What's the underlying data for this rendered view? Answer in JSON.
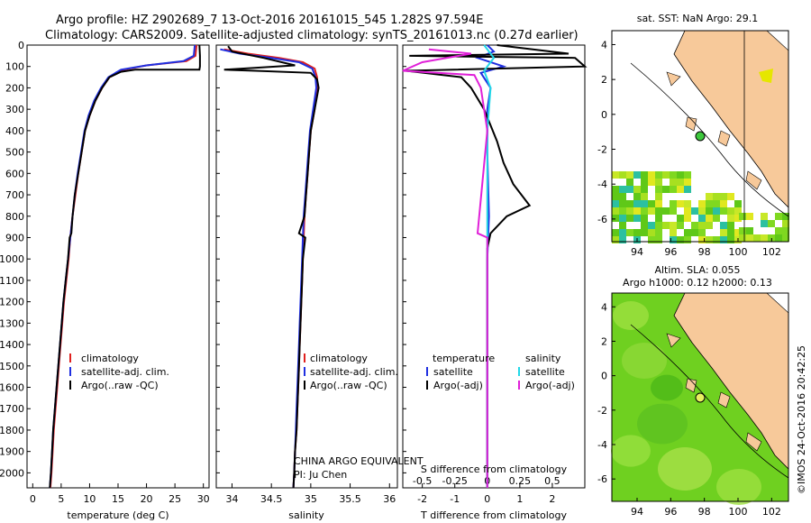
{
  "header": {
    "line1": "Argo profile: HZ 2902689_7 13-Oct-2016 20161015_545 1.282S 97.594E",
    "line2": "Climatology: CARS2009. Satellite-adjusted climatology: synTS_20161013.nc (0.27d earlier)"
  },
  "colors": {
    "climatology": "#e0201e",
    "satellite": "#1f2fe0",
    "argo": "#000000",
    "salinity_sat": "#22d8e8",
    "salinity_argo": "#e020d8",
    "land": "#f7c99a",
    "ocean_sst": "#6fd020"
  },
  "chart_data": [
    {
      "type": "line",
      "name": "temperature-panel",
      "xlabel": "temperature (deg C)",
      "ylabel": "",
      "xlim": [
        -1,
        31
      ],
      "ylim": [
        2070,
        0
      ],
      "xticks": [
        "0",
        "5",
        "10",
        "15",
        "20",
        "25",
        "30"
      ],
      "yticks": [
        "0",
        "100",
        "200",
        "300",
        "400",
        "500",
        "600",
        "700",
        "800",
        "900",
        "1000",
        "1100",
        "1200",
        "1300",
        "1400",
        "1500",
        "1600",
        "1700",
        "1800",
        "1900",
        "2000"
      ],
      "legend": [
        "climatology",
        "satellite-adj. clim.",
        "Argo(..raw -QC)"
      ],
      "series": [
        {
          "name": "climatology",
          "color": "#e0201e",
          "points": [
            [
              28.8,
              0
            ],
            [
              28.6,
              50
            ],
            [
              27,
              75
            ],
            [
              20,
              95
            ],
            [
              16,
              115
            ],
            [
              13.5,
              150
            ],
            [
              12.2,
              200
            ],
            [
              11,
              260
            ],
            [
              10,
              330
            ],
            [
              9.2,
              400
            ],
            [
              8.6,
              500
            ],
            [
              8,
              600
            ],
            [
              7.5,
              700
            ],
            [
              7,
              800
            ],
            [
              6.6,
              900
            ],
            [
              6.3,
              1000
            ],
            [
              5.9,
              1100
            ],
            [
              5.5,
              1200
            ],
            [
              5.2,
              1300
            ],
            [
              4.9,
              1400
            ],
            [
              4.6,
              1500
            ],
            [
              4.3,
              1600
            ],
            [
              4,
              1700
            ],
            [
              3.7,
              1800
            ],
            [
              3.5,
              1900
            ],
            [
              3.3,
              2000
            ],
            [
              3.1,
              2070
            ]
          ]
        },
        {
          "name": "satellite-adj. clim.",
          "color": "#1f2fe0",
          "points": [
            [
              28.5,
              0
            ],
            [
              28.3,
              50
            ],
            [
              26.5,
              75
            ],
            [
              20,
              95
            ],
            [
              15.5,
              115
            ],
            [
              13.3,
              150
            ],
            [
              12,
              200
            ],
            [
              10.8,
              260
            ],
            [
              9.8,
              330
            ],
            [
              9.1,
              400
            ],
            [
              8.5,
              500
            ],
            [
              7.9,
              600
            ],
            [
              7.4,
              700
            ],
            [
              7,
              800
            ],
            [
              6.6,
              900
            ],
            [
              6.2,
              1000
            ],
            [
              5.8,
              1100
            ],
            [
              5.4,
              1200
            ],
            [
              5.1,
              1300
            ],
            [
              4.8,
              1400
            ],
            [
              4.5,
              1500
            ],
            [
              4.2,
              1600
            ],
            [
              3.9,
              1700
            ],
            [
              3.6,
              1800
            ],
            [
              3.4,
              1900
            ],
            [
              3.2,
              2000
            ],
            [
              3,
              2070
            ]
          ]
        },
        {
          "name": "Argo(..raw -QC)",
          "color": "#000000",
          "points": [
            [
              29.3,
              0
            ],
            [
              29.4,
              50
            ],
            [
              29.4,
              100
            ],
            [
              29.3,
              115
            ],
            [
              18,
              115
            ],
            [
              15.5,
              125
            ],
            [
              13.5,
              150
            ],
            [
              12.2,
              200
            ],
            [
              11,
              260
            ],
            [
              10,
              330
            ],
            [
              9.2,
              400
            ],
            [
              8.6,
              500
            ],
            [
              8,
              600
            ],
            [
              7.4,
              700
            ],
            [
              7,
              800
            ],
            [
              6.8,
              880
            ],
            [
              6.5,
              900
            ],
            [
              6.2,
              1000
            ],
            [
              5.8,
              1100
            ],
            [
              5.4,
              1200
            ],
            [
              5.1,
              1300
            ],
            [
              4.8,
              1400
            ],
            [
              4.5,
              1500
            ],
            [
              4.2,
              1600
            ],
            [
              3.9,
              1700
            ],
            [
              3.6,
              1800
            ],
            [
              3.4,
              1900
            ],
            [
              3.2,
              2000
            ],
            [
              3,
              2070
            ]
          ]
        }
      ]
    },
    {
      "type": "line",
      "name": "salinity-panel",
      "xlabel": "salinity",
      "xlim": [
        33.8,
        36.1
      ],
      "ylim": [
        2070,
        0
      ],
      "xticks": [
        "34",
        "34.5",
        "35",
        "35.5",
        "36"
      ],
      "legend": [
        "climatology",
        "satellite-adj. clim.",
        "Argo(..raw -QC)"
      ],
      "series": [
        {
          "name": "climatology",
          "color": "#e0201e",
          "points": [
            [
              33.9,
              20
            ],
            [
              34.2,
              40
            ],
            [
              34.6,
              60
            ],
            [
              34.9,
              80
            ],
            [
              35.05,
              110
            ],
            [
              35.08,
              150
            ],
            [
              35.08,
              200
            ],
            [
              35.05,
              300
            ],
            [
              35.0,
              400
            ],
            [
              34.98,
              500
            ],
            [
              34.96,
              600
            ],
            [
              34.94,
              700
            ],
            [
              34.92,
              800
            ],
            [
              34.91,
              900
            ],
            [
              34.9,
              1000
            ],
            [
              34.89,
              1100
            ],
            [
              34.88,
              1200
            ],
            [
              34.87,
              1300
            ],
            [
              34.86,
              1400
            ],
            [
              34.85,
              1500
            ],
            [
              34.84,
              1600
            ],
            [
              34.83,
              1700
            ],
            [
              34.82,
              1800
            ],
            [
              34.8,
              1900
            ],
            [
              34.79,
              2000
            ],
            [
              34.78,
              2070
            ]
          ]
        },
        {
          "name": "satellite-adj. clim.",
          "color": "#1f2fe0",
          "points": [
            [
              33.85,
              20
            ],
            [
              34.1,
              40
            ],
            [
              34.5,
              60
            ],
            [
              34.85,
              80
            ],
            [
              35.02,
              110
            ],
            [
              35.06,
              150
            ],
            [
              35.07,
              200
            ],
            [
              35.03,
              300
            ],
            [
              34.99,
              400
            ],
            [
              34.97,
              500
            ],
            [
              34.95,
              600
            ],
            [
              34.93,
              700
            ],
            [
              34.91,
              800
            ],
            [
              34.9,
              900
            ],
            [
              34.89,
              1000
            ],
            [
              34.88,
              1100
            ],
            [
              34.87,
              1200
            ],
            [
              34.86,
              1300
            ],
            [
              34.85,
              1400
            ],
            [
              34.84,
              1500
            ],
            [
              34.83,
              1600
            ],
            [
              34.82,
              1700
            ],
            [
              34.81,
              1800
            ],
            [
              34.8,
              1900
            ],
            [
              34.79,
              2000
            ],
            [
              34.78,
              2070
            ]
          ]
        },
        {
          "name": "Argo(..raw -QC)",
          "color": "#000000",
          "points": [
            [
              33.95,
              5
            ],
            [
              34.0,
              30
            ],
            [
              34.4,
              60
            ],
            [
              34.8,
              95
            ],
            [
              33.9,
              115
            ],
            [
              34.3,
              120
            ],
            [
              35.0,
              130
            ],
            [
              35.08,
              160
            ],
            [
              35.1,
              200
            ],
            [
              35.05,
              300
            ],
            [
              35.0,
              400
            ],
            [
              34.98,
              500
            ],
            [
              34.96,
              600
            ],
            [
              34.94,
              700
            ],
            [
              34.92,
              800
            ],
            [
              34.85,
              880
            ],
            [
              34.93,
              900
            ],
            [
              34.9,
              1000
            ],
            [
              34.89,
              1100
            ],
            [
              34.88,
              1200
            ],
            [
              34.87,
              1300
            ],
            [
              34.86,
              1400
            ],
            [
              34.85,
              1500
            ],
            [
              34.84,
              1600
            ],
            [
              34.83,
              1700
            ],
            [
              34.82,
              1800
            ],
            [
              34.8,
              1900
            ],
            [
              34.79,
              2000
            ],
            [
              34.78,
              2070
            ]
          ]
        }
      ],
      "annotation": [
        "CHINA ARGO EQUIVALENT",
        "PI: Ju Chen"
      ]
    },
    {
      "type": "line",
      "name": "difference-panel",
      "xlabel": "T difference from climatology",
      "xlabel_top": "S difference from climatology",
      "xlim": [
        -2.6,
        3.0
      ],
      "ylim": [
        2070,
        0
      ],
      "xticks": [
        "-2",
        "-1",
        "0",
        "1",
        "2"
      ],
      "xticks_top": [
        "-0.5",
        "-0.25",
        "0",
        "0.25",
        "0.5"
      ],
      "legend_titles": [
        "temperature",
        "salinity"
      ],
      "legend": [
        "satellite",
        "Argo(-adj)",
        "satellite",
        "Argo(-adj)"
      ],
      "series": [
        {
          "name": "temperature satellite",
          "color": "#1f2fe0",
          "points": [
            [
              0,
              0
            ],
            [
              0.2,
              30
            ],
            [
              -0.3,
              60
            ],
            [
              0.5,
              100
            ],
            [
              -0.2,
              130
            ],
            [
              0.1,
              200
            ],
            [
              0,
              300
            ],
            [
              0,
              500
            ],
            [
              0.05,
              800
            ],
            [
              0,
              1000
            ],
            [
              0,
              1200
            ],
            [
              0,
              1500
            ],
            [
              0,
              2070
            ]
          ]
        },
        {
          "name": "temperature Argo(-adj)",
          "color": "#000000",
          "points": [
            [
              0.3,
              0
            ],
            [
              2.5,
              40
            ],
            [
              -2.4,
              50
            ],
            [
              2.7,
              60
            ],
            [
              3.0,
              100
            ],
            [
              -2.5,
              120
            ],
            [
              -0.8,
              150
            ],
            [
              -0.5,
              200
            ],
            [
              -0.1,
              300
            ],
            [
              0.3,
              450
            ],
            [
              0.5,
              550
            ],
            [
              0.8,
              650
            ],
            [
              1.3,
              750
            ],
            [
              0.6,
              800
            ],
            [
              0.1,
              880
            ],
            [
              0,
              950
            ],
            [
              0,
              1200
            ],
            [
              0,
              1600
            ],
            [
              0,
              2070
            ]
          ]
        },
        {
          "name": "salinity satellite",
          "color": "#22d8e8",
          "points": [
            [
              -0.1,
              0
            ],
            [
              0.2,
              60
            ],
            [
              -0.1,
              120
            ],
            [
              0.1,
              200
            ],
            [
              0,
              400
            ],
            [
              0,
              800
            ],
            [
              0,
              1200
            ],
            [
              0,
              2070
            ]
          ]
        },
        {
          "name": "salinity Argo(-adj)",
          "color": "#e020d8",
          "points": [
            [
              -1.8,
              20
            ],
            [
              -0.5,
              40
            ],
            [
              -2.0,
              80
            ],
            [
              -2.6,
              120
            ],
            [
              -0.4,
              140
            ],
            [
              -0.2,
              200
            ],
            [
              0,
              400
            ],
            [
              -0.3,
              880
            ],
            [
              0,
              900
            ],
            [
              0,
              1200
            ],
            [
              0,
              2070
            ]
          ]
        }
      ]
    },
    {
      "type": "heatmap",
      "name": "sst-map",
      "title": "sat. SST: NaN Argo: 29.1",
      "xticks": [
        "94",
        "96",
        "98",
        "100",
        "102"
      ],
      "yticks": [
        "4",
        "2",
        "0",
        "-2",
        "-4",
        "-6"
      ],
      "xlim": [
        92.5,
        103
      ],
      "ylim": [
        -7.3,
        4.8
      ],
      "argo_position": [
        97.594,
        -1.282
      ]
    },
    {
      "type": "heatmap",
      "name": "sla-map",
      "title_line1": "Altim. SLA: 0.055",
      "title_line2": "Argo h1000: 0.12 h2000: 0.13",
      "xticks": [
        "94",
        "96",
        "98",
        "100",
        "102"
      ],
      "yticks": [
        "4",
        "2",
        "0",
        "-2",
        "-4",
        "-6"
      ],
      "xlim": [
        92.5,
        103
      ],
      "ylim": [
        -7.3,
        4.8
      ],
      "argo_position": [
        97.594,
        -1.282
      ]
    }
  ],
  "footer": {
    "stamp": "©IMOS 24-Oct-2016 20:42:25"
  }
}
